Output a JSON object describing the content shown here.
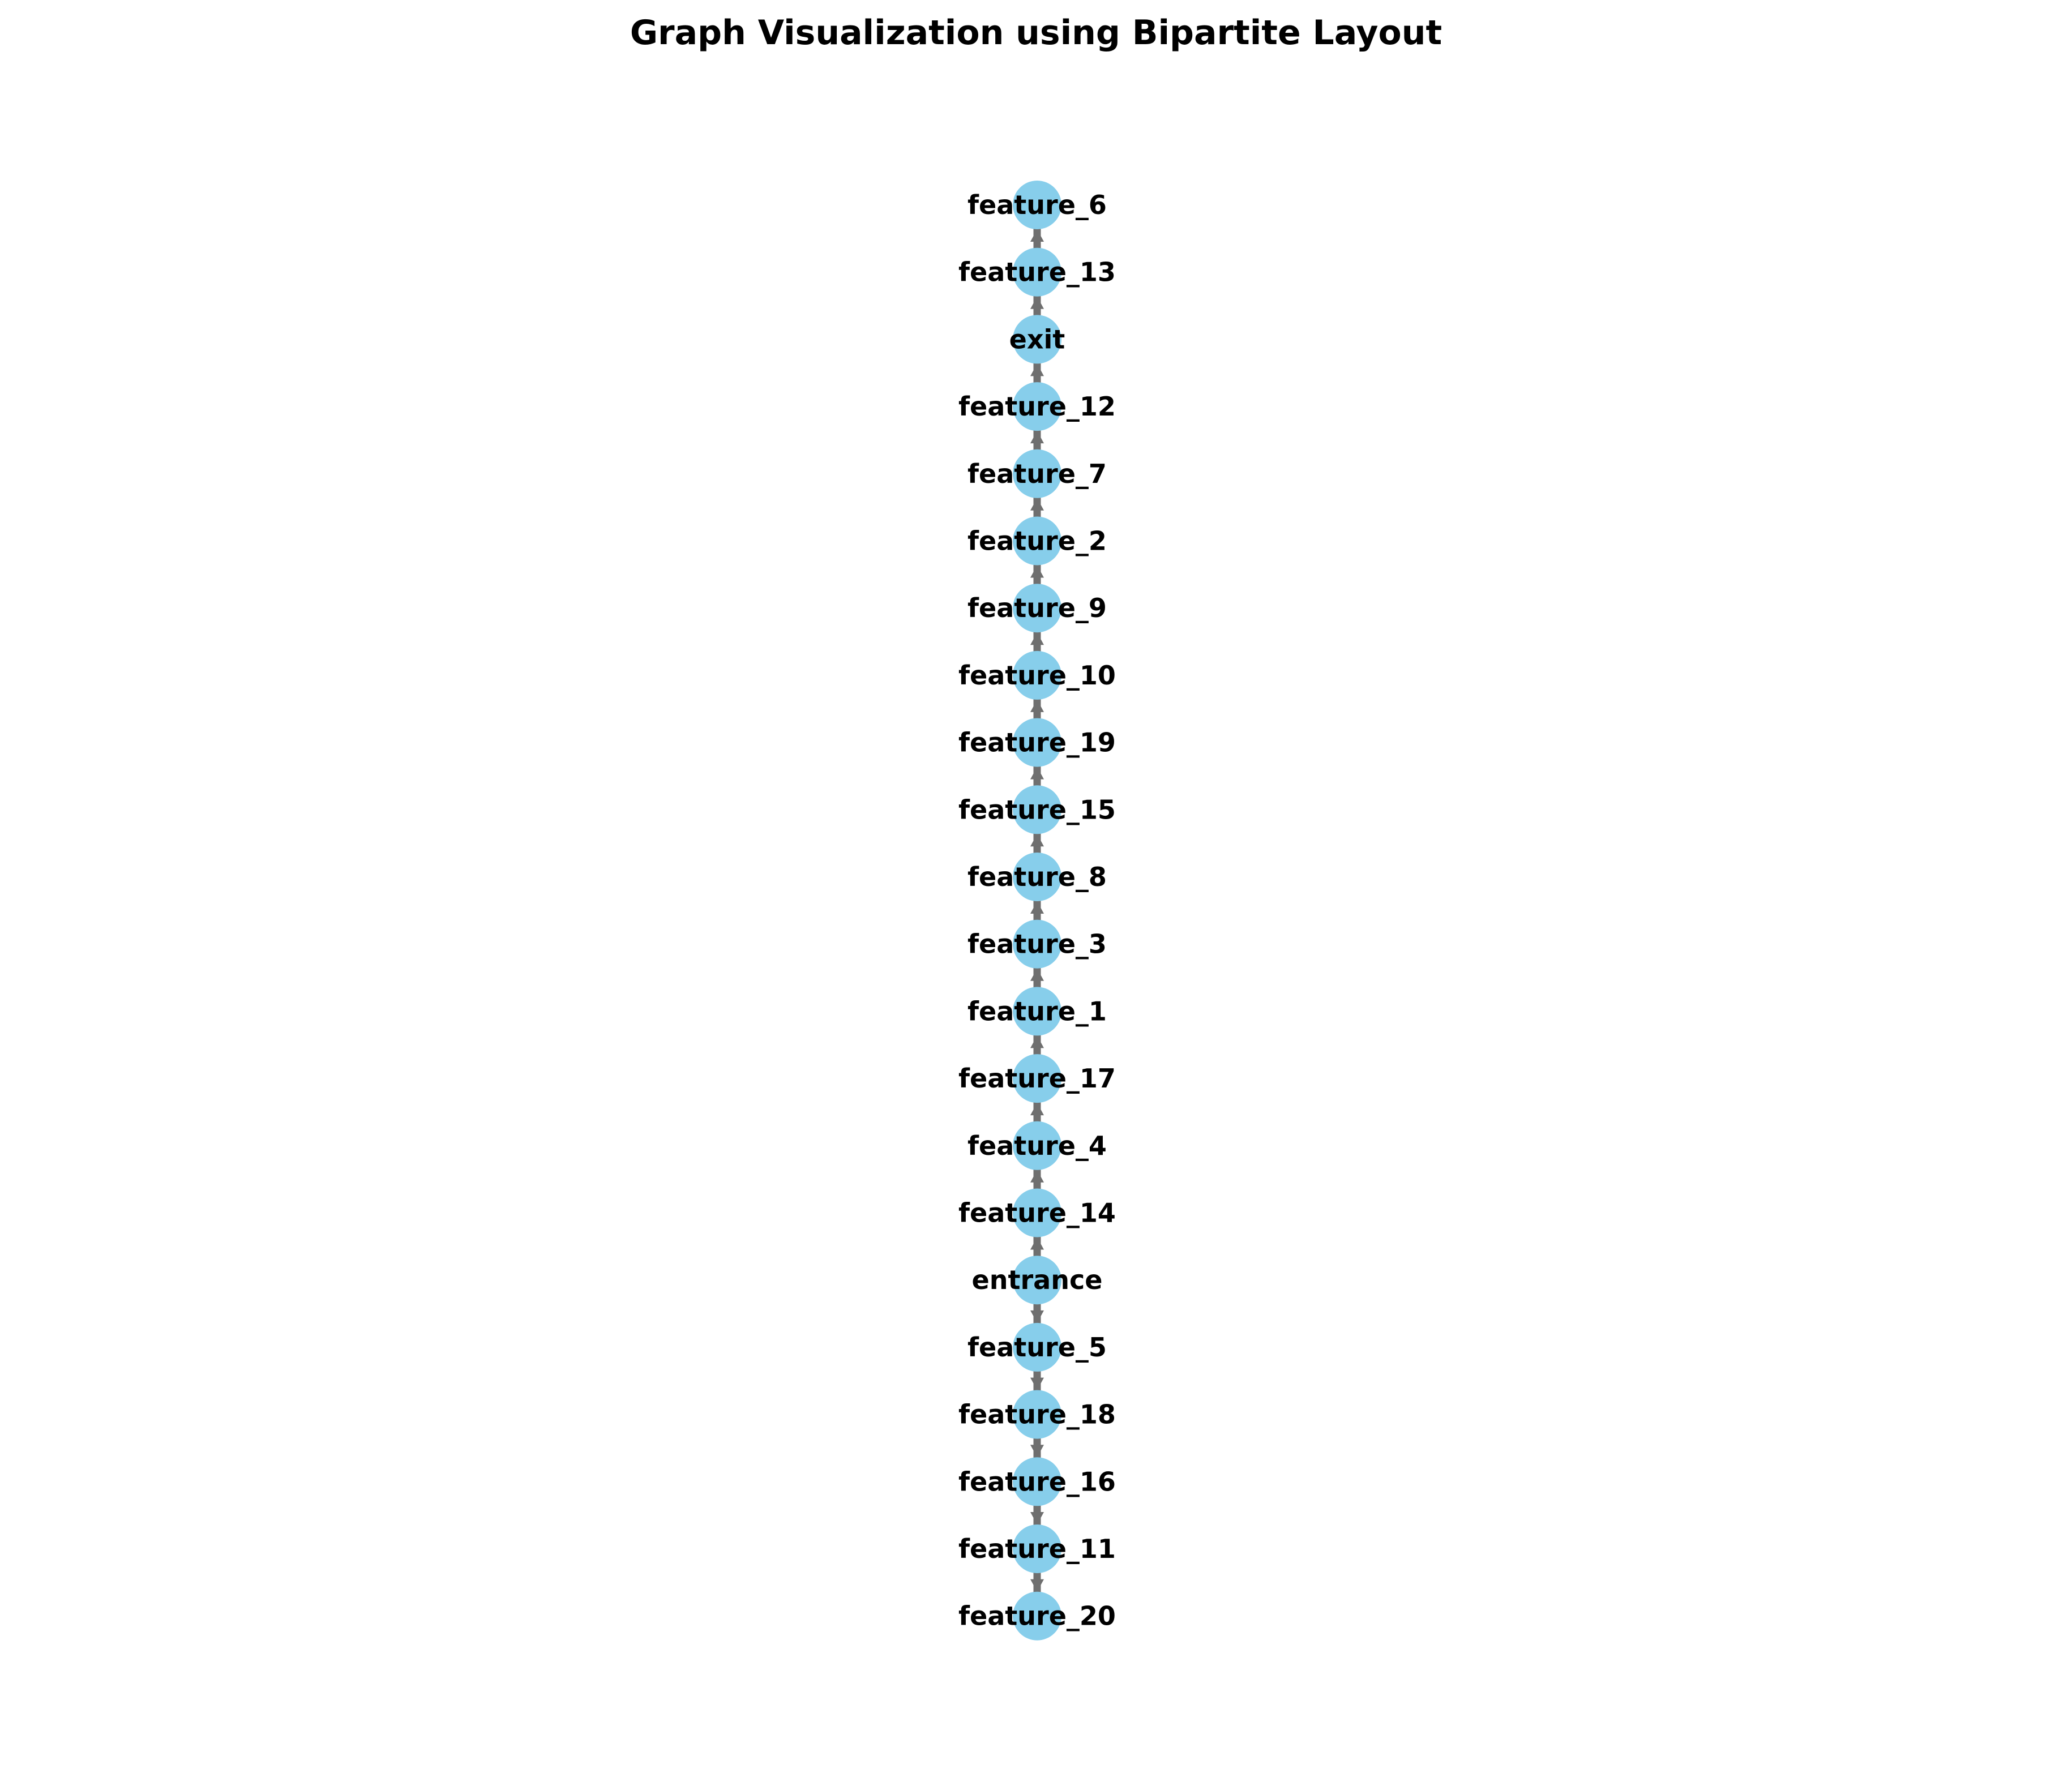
{
  "chart_data": {
    "type": "graph",
    "layout": "bipartite",
    "title": "Graph Visualization using Bipartite Layout",
    "nodes": [
      "feature_6",
      "feature_13",
      "exit",
      "feature_12",
      "feature_7",
      "feature_2",
      "feature_9",
      "feature_10",
      "feature_19",
      "feature_15",
      "feature_8",
      "feature_3",
      "feature_1",
      "feature_17",
      "feature_4",
      "feature_14",
      "entrance",
      "feature_5",
      "feature_18",
      "feature_16",
      "feature_11",
      "feature_20"
    ],
    "edges": [
      [
        "feature_13",
        "feature_6"
      ],
      [
        "exit",
        "feature_13"
      ],
      [
        "feature_12",
        "exit"
      ],
      [
        "feature_7",
        "feature_12"
      ],
      [
        "feature_2",
        "feature_7"
      ],
      [
        "feature_9",
        "feature_2"
      ],
      [
        "feature_10",
        "feature_9"
      ],
      [
        "feature_19",
        "feature_10"
      ],
      [
        "feature_15",
        "feature_19"
      ],
      [
        "feature_8",
        "feature_15"
      ],
      [
        "feature_3",
        "feature_8"
      ],
      [
        "feature_1",
        "feature_3"
      ],
      [
        "feature_17",
        "feature_1"
      ],
      [
        "feature_4",
        "feature_17"
      ],
      [
        "feature_14",
        "feature_4"
      ],
      [
        "entrance",
        "feature_14"
      ],
      [
        "entrance",
        "feature_5"
      ],
      [
        "feature_5",
        "feature_18"
      ],
      [
        "feature_18",
        "feature_16"
      ],
      [
        "feature_16",
        "feature_11"
      ],
      [
        "feature_11",
        "feature_20"
      ]
    ],
    "node_color": "#87CEEB",
    "edge_color": "#6f6f6f",
    "label_color": "#000000",
    "background": "#ffffff"
  }
}
